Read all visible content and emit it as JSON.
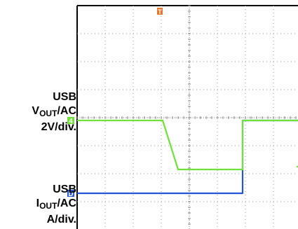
{
  "chart_data": {
    "type": "line",
    "title": "",
    "xlabel": "",
    "ylabel": "",
    "grid": true,
    "trigger_marker": "T",
    "time_div": 1,
    "series": [
      {
        "label_line1": "USB",
        "label_main": "V",
        "label_sub": "OUT",
        "label_suffix": "/AC",
        "label_scale": "2V/div.",
        "marker": "D",
        "color": "#2355d8",
        "points": [
          [
            0,
            2.7
          ],
          [
            5.9,
            2.7
          ],
          [
            5.9,
            0.1
          ],
          [
            10,
            0.1
          ]
        ]
      },
      {
        "label_line1": "USB",
        "label_main": "I",
        "label_sub": "OUT",
        "label_suffix": "/AC",
        "label_scale": "A/div.",
        "marker": "4",
        "color": "#6fe23a",
        "points": [
          [
            0,
            0.1
          ],
          [
            3.05,
            0.1
          ],
          [
            3.6,
            1.85
          ],
          [
            5.9,
            1.85
          ],
          [
            5.9,
            0.1
          ],
          [
            10,
            0.1
          ]
        ]
      }
    ]
  }
}
